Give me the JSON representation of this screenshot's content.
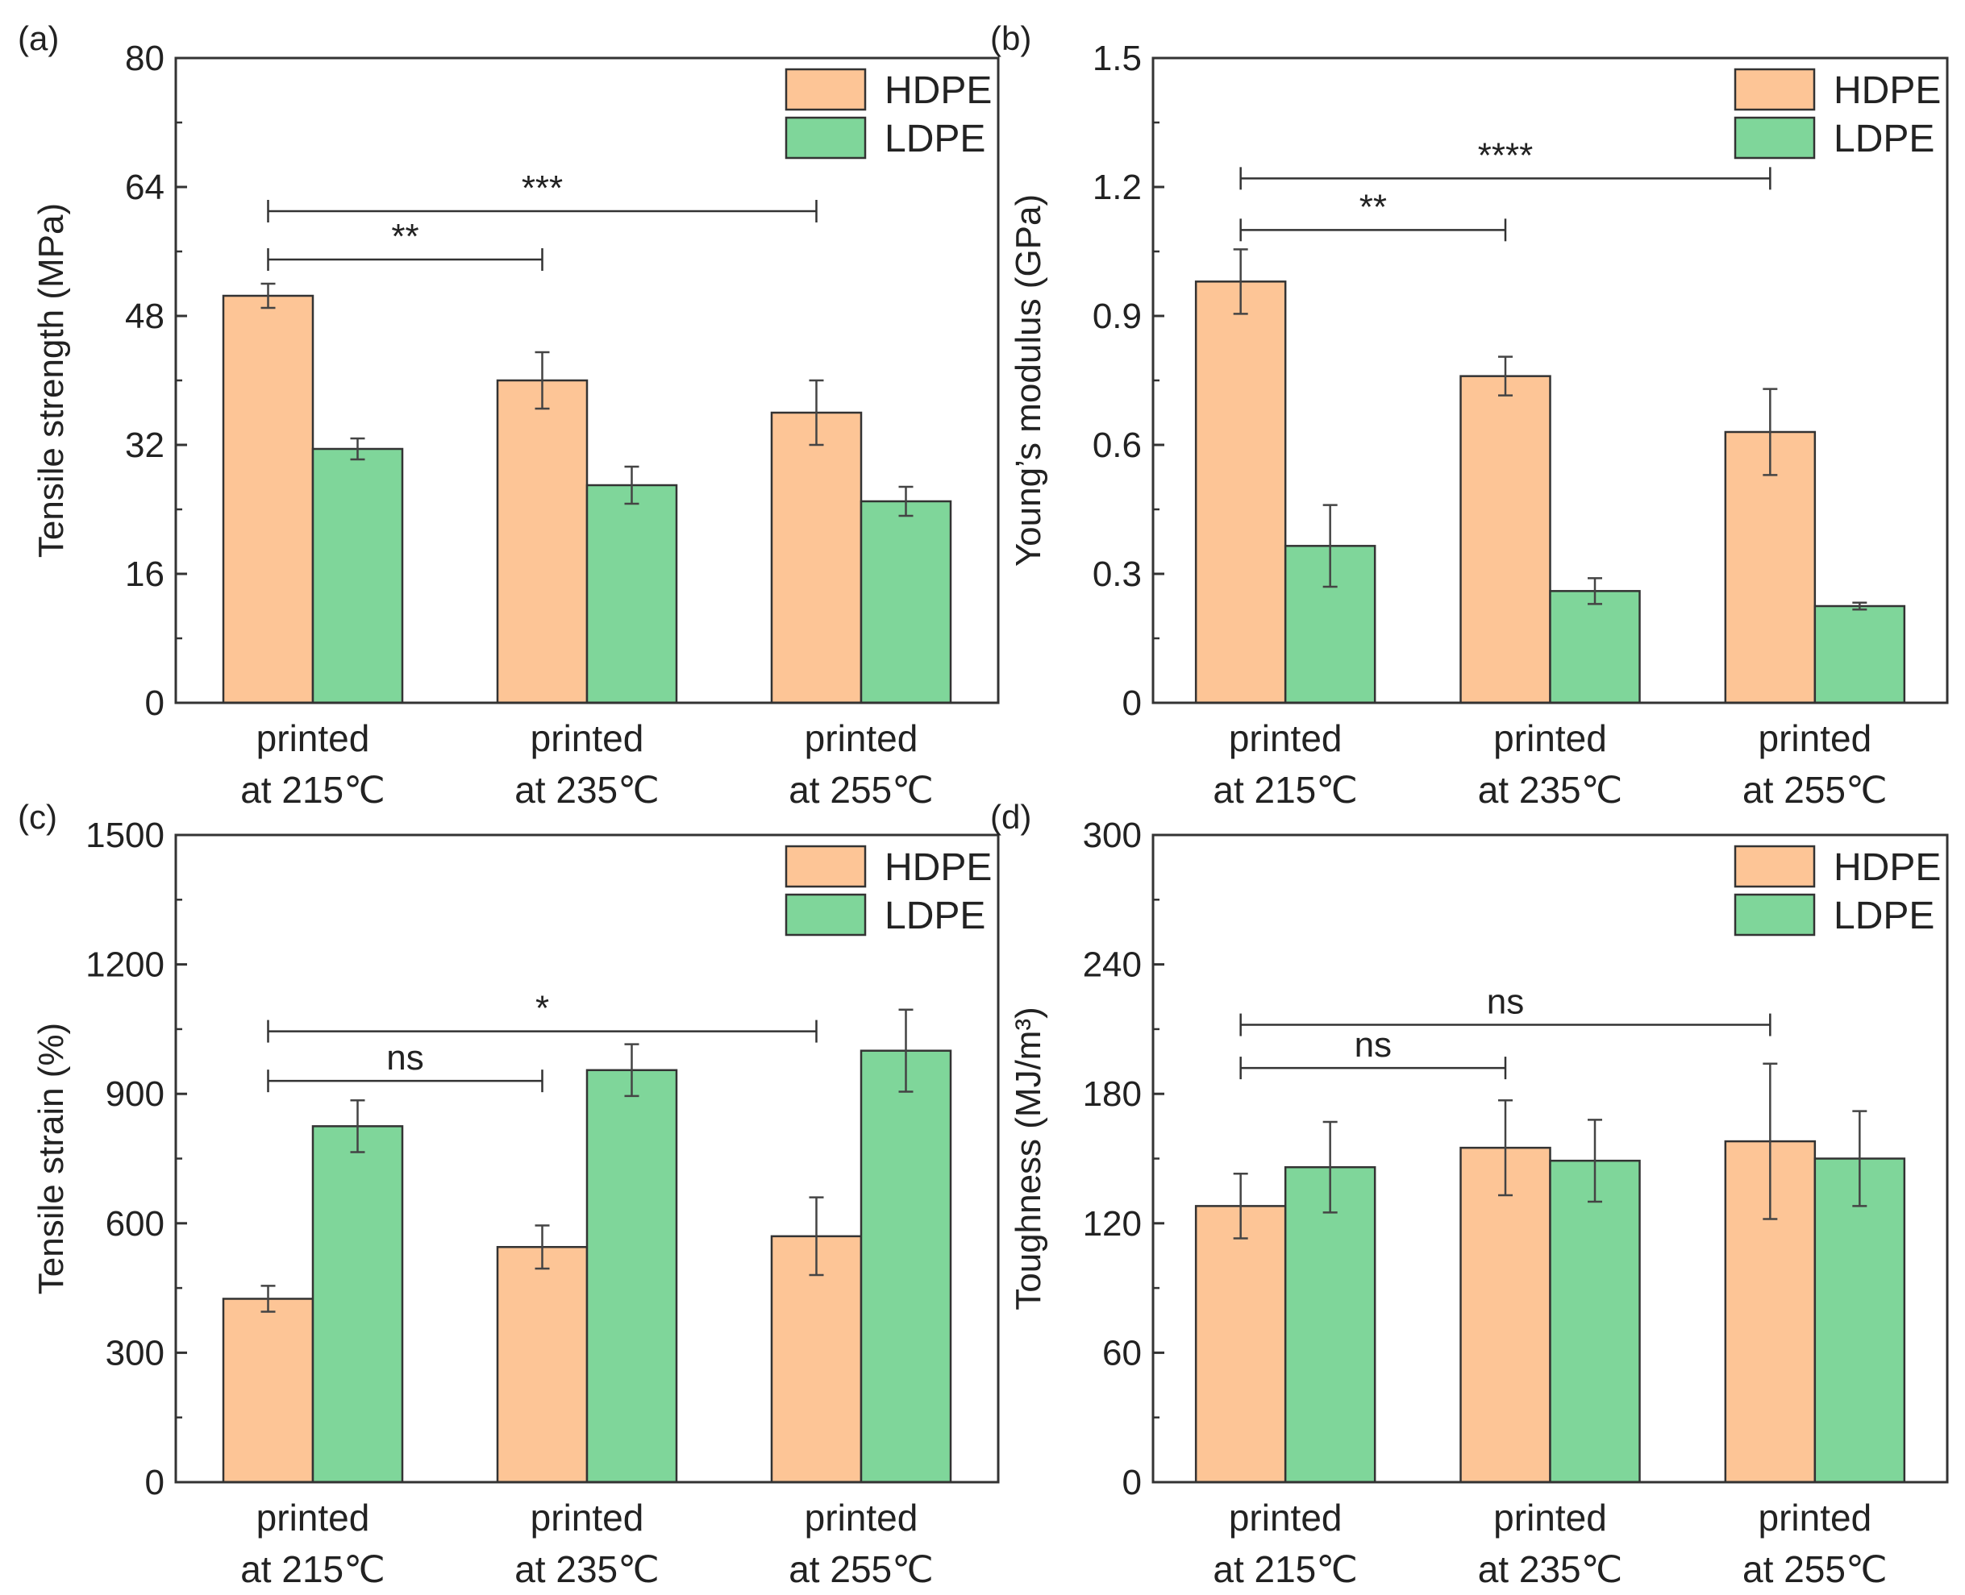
{
  "figure": {
    "colors": {
      "hdpe": "#FDC596",
      "ldpe": "#7FD69A",
      "axis": "#333333",
      "error": "#444444"
    },
    "legend": [
      "HDPE",
      "LDPE"
    ]
  },
  "chart_data": [
    {
      "type": "bar",
      "panel_label": "(a)",
      "title": "",
      "xlabel": "",
      "ylabel": "Tensile strength (MPa)",
      "ylim": [
        0,
        80
      ],
      "yticks": [
        0,
        16,
        32,
        48,
        64,
        80
      ],
      "categories": [
        [
          "printed",
          "at 215℃"
        ],
        [
          "printed",
          "at 235℃"
        ],
        [
          "printed",
          "at 255℃"
        ]
      ],
      "series": [
        {
          "name": "HDPE",
          "values": [
            50.5,
            40,
            36
          ],
          "errors": [
            1.5,
            3.5,
            4
          ]
        },
        {
          "name": "LDPE",
          "values": [
            31.5,
            27,
            25
          ],
          "errors": [
            1.3,
            2.3,
            1.8
          ]
        }
      ],
      "legend": "top-right",
      "significance": [
        {
          "from": 0,
          "to": 1,
          "label": "**",
          "y": 55
        },
        {
          "from": 0,
          "to": 2,
          "label": "***",
          "y": 61
        }
      ]
    },
    {
      "type": "bar",
      "panel_label": "(b)",
      "title": "",
      "xlabel": "",
      "ylabel": "Young’s modulus (GPa)",
      "ylim": [
        0,
        1.5
      ],
      "yticks": [
        0,
        0.3,
        0.6,
        0.9,
        1.2,
        1.5
      ],
      "ytick_labels": [
        "0",
        "0.3",
        "0.6",
        "0.9",
        "1.2",
        "1.5"
      ],
      "categories": [
        [
          "printed",
          "at 215℃"
        ],
        [
          "printed",
          "at 235℃"
        ],
        [
          "printed",
          "at 255℃"
        ]
      ],
      "series": [
        {
          "name": "HDPE",
          "values": [
            0.98,
            0.76,
            0.63
          ],
          "errors": [
            0.075,
            0.045,
            0.1
          ]
        },
        {
          "name": "LDPE",
          "values": [
            0.365,
            0.26,
            0.225
          ],
          "errors": [
            0.095,
            0.03,
            0.008
          ]
        }
      ],
      "legend": "top-right",
      "significance": [
        {
          "from": 0,
          "to": 1,
          "label": "**",
          "y": 1.1
        },
        {
          "from": 0,
          "to": 2,
          "label": "****",
          "y": 1.22
        }
      ]
    },
    {
      "type": "bar",
      "panel_label": "(c)",
      "title": "",
      "xlabel": "",
      "ylabel": "Tensile strain (%)",
      "ylim": [
        0,
        1500
      ],
      "yticks": [
        0,
        300,
        600,
        900,
        1200,
        1500
      ],
      "categories": [
        [
          "printed",
          "at 215℃"
        ],
        [
          "printed",
          "at 235℃"
        ],
        [
          "printed",
          "at 255℃"
        ]
      ],
      "series": [
        {
          "name": "HDPE",
          "values": [
            425,
            545,
            570
          ],
          "errors": [
            30,
            50,
            90
          ]
        },
        {
          "name": "LDPE",
          "values": [
            825,
            955,
            1000
          ],
          "errors": [
            60,
            60,
            95
          ]
        }
      ],
      "legend": "top-right",
      "significance": [
        {
          "from": 0,
          "to": 1,
          "label": "ns",
          "y": 930
        },
        {
          "from": 0,
          "to": 2,
          "label": "*",
          "y": 1045
        }
      ]
    },
    {
      "type": "bar",
      "panel_label": "(d)",
      "title": "",
      "xlabel": "",
      "ylabel": "Toughness (MJ/m³)",
      "ylim": [
        0,
        300
      ],
      "yticks": [
        0,
        60,
        120,
        180,
        240,
        300
      ],
      "categories": [
        [
          "printed",
          "at 215℃"
        ],
        [
          "printed",
          "at 235℃"
        ],
        [
          "printed",
          "at 255℃"
        ]
      ],
      "series": [
        {
          "name": "HDPE",
          "values": [
            128,
            155,
            158
          ],
          "errors": [
            15,
            22,
            36
          ]
        },
        {
          "name": "LDPE",
          "values": [
            146,
            149,
            150
          ],
          "errors": [
            21,
            19,
            22
          ]
        }
      ],
      "legend": "top-right",
      "significance": [
        {
          "from": 0,
          "to": 1,
          "label": "ns",
          "y": 192
        },
        {
          "from": 0,
          "to": 2,
          "label": "ns",
          "y": 212
        }
      ]
    }
  ]
}
